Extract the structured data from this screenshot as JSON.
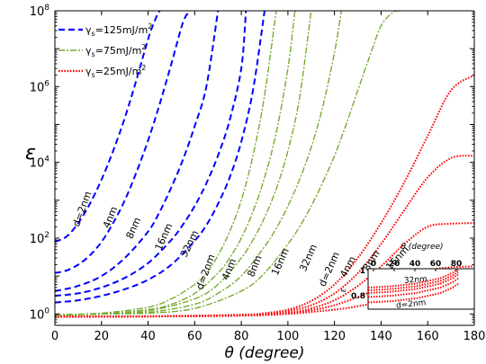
{
  "chart_data": {
    "type": "line",
    "xlabel": "θ (degree)",
    "ylabel": "ε",
    "yscale": "log",
    "xlim": [
      0,
      180
    ],
    "ylim": [
      0.5,
      100000000
    ],
    "x_ticks": [
      0,
      20,
      40,
      60,
      80,
      100,
      120,
      140,
      160,
      180
    ],
    "y_ticks": [
      {
        "value": 1,
        "base": "10",
        "exp": "0"
      },
      {
        "value": 100,
        "base": "10",
        "exp": "2"
      },
      {
        "value": 10000,
        "base": "10",
        "exp": "4"
      },
      {
        "value": 1000000,
        "base": "10",
        "exp": "6"
      },
      {
        "value": 100000000,
        "base": "10",
        "exp": "8"
      }
    ],
    "legend_placement": "top-left",
    "legend": [
      {
        "symbol": "γ",
        "sub": "s",
        "text": "=125mJ/m",
        "sup": "2",
        "color": "#0000ff",
        "dash": "7,4",
        "width": 2.2
      },
      {
        "symbol": "γ",
        "sub": "s",
        "text": "=75mJ/m",
        "sup": "2",
        "color": "#77ac30",
        "dash": "7,2,2,2",
        "width": 1.6
      },
      {
        "symbol": "γ",
        "sub": "s",
        "text": "=25mJ/m",
        "sup": "2",
        "color": "#ff0000",
        "dash": "1.6,1.6",
        "width": 2.2
      }
    ],
    "series": [
      {
        "group": "125mJ/m2",
        "d": "d=2nm",
        "color": "#0000ff",
        "dash": "7,4",
        "width": 2.0,
        "x": [
          0,
          5,
          10,
          15,
          20,
          25,
          30,
          35,
          40,
          42,
          44,
          45
        ],
        "y": [
          80,
          110,
          250,
          800,
          3500,
          20000,
          150000,
          1500000,
          18000000,
          40000000,
          80000000,
          100000000
        ]
      },
      {
        "group": "125mJ/m2",
        "d": "4nm",
        "color": "#0000ff",
        "dash": "7,4",
        "width": 2.0,
        "x": [
          0,
          5,
          10,
          15,
          20,
          25,
          30,
          35,
          40,
          45,
          50,
          55,
          58
        ],
        "y": [
          12,
          14,
          20,
          35,
          80,
          250,
          1000,
          5500,
          38000,
          350000,
          4000000,
          50000000,
          100000000
        ]
      },
      {
        "group": "125mJ/m2",
        "d": "8nm",
        "color": "#0000ff",
        "dash": "7,4",
        "width": 2.0,
        "x": [
          0,
          10,
          20,
          30,
          40,
          45,
          50,
          55,
          60,
          65,
          70
        ],
        "y": [
          4,
          5.5,
          10,
          30,
          150,
          500,
          2200,
          12000,
          90000,
          1000000,
          100000000
        ]
      },
      {
        "group": "125mJ/m2",
        "d": "16nm",
        "color": "#0000ff",
        "dash": "7,4",
        "width": 2.0,
        "x": [
          0,
          10,
          20,
          30,
          40,
          50,
          55,
          60,
          65,
          70,
          75,
          80,
          82
        ],
        "y": [
          3,
          3.5,
          5,
          9,
          22,
          90,
          230,
          700,
          2800,
          15000,
          130000,
          3000000,
          100000000
        ]
      },
      {
        "group": "125mJ/m2",
        "d": "32nm",
        "color": "#0000ff",
        "dash": "7,4",
        "width": 2.0,
        "x": [
          0,
          10,
          20,
          30,
          40,
          50,
          60,
          65,
          70,
          75,
          80,
          85,
          90
        ],
        "y": [
          2,
          2.3,
          3,
          4.5,
          8,
          20,
          85,
          220,
          800,
          4000,
          35000,
          800000,
          100000000
        ]
      },
      {
        "group": "75mJ/m2",
        "d": "d=2nm",
        "color": "#77ac30",
        "dash": "7,2,2,2",
        "width": 1.4,
        "x": [
          0,
          20,
          40,
          50,
          60,
          65,
          70,
          75,
          80,
          85,
          90,
          95
        ],
        "y": [
          0.95,
          1.05,
          1.5,
          2.5,
          6,
          12,
          35,
          150,
          1000,
          15000,
          600000,
          100000000
        ]
      },
      {
        "group": "75mJ/m2",
        "d": "4nm",
        "color": "#77ac30",
        "dash": "7,2,2,2",
        "width": 1.4,
        "x": [
          0,
          20,
          40,
          50,
          60,
          70,
          75,
          80,
          85,
          90,
          95,
          100,
          103
        ],
        "y": [
          0.95,
          1.0,
          1.3,
          1.8,
          3.5,
          12,
          30,
          100,
          500,
          4000,
          60000,
          3000000,
          100000000
        ]
      },
      {
        "group": "75mJ/m2",
        "d": "8nm",
        "color": "#77ac30",
        "dash": "7,2,2,2",
        "width": 1.4,
        "x": [
          0,
          20,
          40,
          60,
          70,
          80,
          85,
          90,
          95,
          100,
          105,
          110
        ],
        "y": [
          0.95,
          1.0,
          1.2,
          2.5,
          6,
          30,
          90,
          350,
          2000,
          20000,
          500000,
          100000000
        ]
      },
      {
        "group": "75mJ/m2",
        "d": "16nm",
        "color": "#77ac30",
        "dash": "7,2,2,2",
        "width": 1.4,
        "x": [
          0,
          20,
          40,
          60,
          70,
          80,
          90,
          95,
          100,
          105,
          110,
          115,
          120,
          123
        ],
        "y": [
          0.95,
          1.0,
          1.1,
          1.8,
          3.5,
          10,
          60,
          180,
          700,
          3500,
          25000,
          300000,
          8000000,
          100000000
        ]
      },
      {
        "group": "75mJ/m2",
        "d": "32nm",
        "color": "#77ac30",
        "dash": "7,2,2,2",
        "width": 1.4,
        "x": [
          0,
          20,
          40,
          60,
          80,
          90,
          100,
          105,
          110,
          115,
          120,
          125,
          130,
          135,
          140,
          145,
          148
        ],
        "y": [
          0.95,
          1.0,
          1.05,
          1.4,
          4,
          12,
          70,
          200,
          700,
          3000,
          15000,
          100000,
          800000,
          6000000,
          40000000,
          90000000,
          100000000
        ]
      },
      {
        "group": "25mJ/m2",
        "d": "d=2nm",
        "color": "#ff0000",
        "dash": "1.6,1.6",
        "width": 2.0,
        "x": [
          0,
          40,
          80,
          90,
          100,
          110,
          120,
          130,
          140,
          150,
          160,
          170,
          180
        ],
        "y": [
          0.85,
          0.87,
          0.95,
          1.05,
          1.3,
          2.2,
          6,
          30,
          250,
          3000,
          50000,
          800000,
          2000000
        ]
      },
      {
        "group": "25mJ/m2",
        "d": "4nm",
        "color": "#ff0000",
        "dash": "1.6,1.6",
        "width": 2.0,
        "x": [
          0,
          40,
          80,
          90,
          100,
          110,
          120,
          130,
          140,
          150,
          160,
          170,
          180
        ],
        "y": [
          0.85,
          0.86,
          0.93,
          1.0,
          1.2,
          1.7,
          3.5,
          12,
          70,
          550,
          4000,
          13000,
          15000
        ]
      },
      {
        "group": "25mJ/m2",
        "d": "8nm",
        "color": "#ff0000",
        "dash": "1.6,1.6",
        "width": 2.0,
        "x": [
          0,
          40,
          80,
          100,
          110,
          120,
          130,
          140,
          150,
          160,
          170,
          180
        ],
        "y": [
          0.85,
          0.86,
          0.92,
          1.1,
          1.4,
          2.3,
          5.5,
          18,
          70,
          200,
          240,
          250
        ]
      },
      {
        "group": "25mJ/m2",
        "d": "16nm",
        "color": "#ff0000",
        "dash": "1.6,1.6",
        "width": 2.0,
        "x": [
          0,
          40,
          80,
          100,
          110,
          120,
          130,
          140,
          150,
          160,
          170,
          180
        ],
        "y": [
          0.85,
          0.86,
          0.91,
          1.05,
          1.25,
          1.7,
          2.8,
          5,
          9,
          14,
          17,
          18
        ]
      },
      {
        "group": "25mJ/m2",
        "d": "32nm",
        "color": "#ff0000",
        "dash": "1.6,1.6",
        "width": 2.0,
        "x": [
          0,
          40,
          80,
          100,
          120,
          130,
          140,
          150,
          160,
          170,
          180
        ],
        "y": [
          0.85,
          0.86,
          0.9,
          1.0,
          1.3,
          1.6,
          2.1,
          2.7,
          3.2,
          3.6,
          3.8
        ]
      }
    ],
    "curve_labels": [
      {
        "text": "d=2nm",
        "x": 13,
        "y": 550,
        "rot": -70
      },
      {
        "text": "4nm",
        "x": 25,
        "y": 330,
        "rot": -68
      },
      {
        "text": "8nm",
        "x": 35,
        "y": 170,
        "rot": -66
      },
      {
        "text": "16nm",
        "x": 48,
        "y": 100,
        "rot": -66
      },
      {
        "text": "32nm",
        "x": 59,
        "y": 65,
        "rot": -64
      },
      {
        "text": "d=2nm",
        "x": 66,
        "y": 12,
        "rot": -70
      },
      {
        "text": "4nm",
        "x": 76,
        "y": 14,
        "rot": -68
      },
      {
        "text": "8nm",
        "x": 87,
        "y": 17,
        "rot": -68
      },
      {
        "text": "16nm",
        "x": 98,
        "y": 22,
        "rot": -66
      },
      {
        "text": "32nm",
        "x": 110,
        "y": 28,
        "rot": -66
      },
      {
        "text": "d=2nm",
        "x": 119,
        "y": 14,
        "rot": -66
      },
      {
        "text": "4nm",
        "x": 127,
        "y": 16,
        "rot": -62
      },
      {
        "text": "8nm",
        "x": 137,
        "y": 23,
        "rot": -58
      },
      {
        "text": "16nm",
        "x": 148,
        "y": 26,
        "rot": -48
      },
      {
        "text": "32nm",
        "x": 163,
        "y": 6.5,
        "rot": -38
      }
    ],
    "inset": {
      "xlabel": "θ (degree)",
      "ylabel": "ε",
      "xlim": [
        0,
        88
      ],
      "ylim": [
        0.7,
        1.0
      ],
      "x_ticks": [
        "0",
        "20",
        "40",
        "60",
        "80"
      ],
      "y_ticks": [
        "1",
        "0.8"
      ],
      "labels": [
        "32nm",
        "d=2nm"
      ],
      "series": [
        {
          "x": [
            0,
            20,
            40,
            60,
            70,
            75
          ],
          "y": [
            0.86,
            0.87,
            0.89,
            0.93,
            0.97,
            1.0
          ]
        },
        {
          "x": [
            0,
            20,
            40,
            60,
            70,
            75
          ],
          "y": [
            0.84,
            0.85,
            0.87,
            0.91,
            0.95,
            0.98
          ]
        },
        {
          "x": [
            0,
            20,
            40,
            60,
            70,
            75
          ],
          "y": [
            0.82,
            0.83,
            0.85,
            0.89,
            0.93,
            0.96
          ]
        },
        {
          "x": [
            0,
            20,
            40,
            60,
            70,
            75
          ],
          "y": [
            0.79,
            0.8,
            0.82,
            0.86,
            0.9,
            0.93
          ]
        },
        {
          "x": [
            0,
            20,
            40,
            60,
            70,
            75
          ],
          "y": [
            0.75,
            0.76,
            0.78,
            0.82,
            0.86,
            0.89
          ]
        }
      ]
    }
  }
}
